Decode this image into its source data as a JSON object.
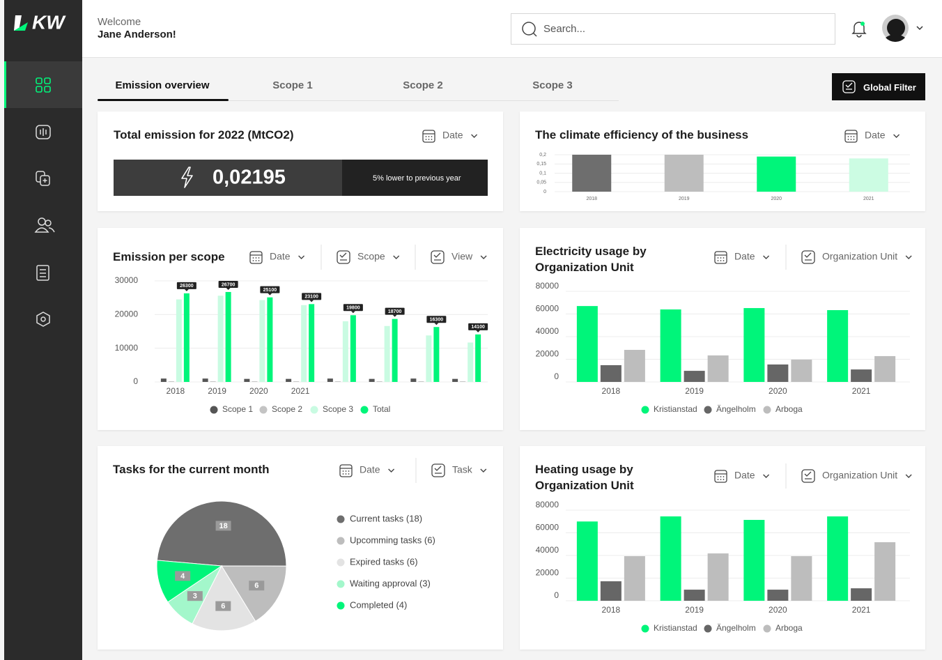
{
  "header": {
    "logo": "KW",
    "greeting": "Welcome",
    "user": "Jane Anderson!",
    "search_placeholder": "Search..."
  },
  "tabs": [
    "Emission overview",
    "Scope 1",
    "Scope 2",
    "Scope 3"
  ],
  "global_filter": "Global Filter",
  "summary": {
    "title": "Total emission for 2022 (MtCO2)",
    "filters": [
      "Date"
    ],
    "value": "0,02195",
    "note": "5% lower to previous year"
  },
  "chart_data": [
    {
      "type": "bar",
      "title": "The climate efficiency of the business",
      "filters": [
        "Date"
      ],
      "categories": [
        "2018",
        "2019",
        "2020",
        "2021"
      ],
      "values": [
        0.2,
        0.2,
        0.19,
        0.18
      ],
      "colors": [
        "#6e6e6e",
        "#bdbdbd",
        "#00f57a",
        "#ccfce3"
      ],
      "ylim": [
        0,
        0.2
      ],
      "yticks": [
        0,
        {
          "value": 0.05,
          "label": "0,05"
        },
        {
          "value": 0.1,
          "label": "0,1"
        },
        {
          "value": 0.15,
          "label": "0,15"
        },
        {
          "value": 0.2,
          "label": "0,2"
        }
      ],
      "grid": true
    },
    {
      "type": "bar",
      "title": "Emission per scope",
      "filters": [
        "Date",
        "Scope",
        "View"
      ],
      "categories": [
        "2018",
        "2019",
        "2020",
        "2021",
        null,
        null,
        null,
        null
      ],
      "series": [
        {
          "name": "Scope 1",
          "color": "#555555",
          "values": [
            1000,
            1000,
            900,
            900,
            1000,
            900,
            1000,
            900
          ]
        },
        {
          "name": "Scope 2",
          "color": "#c4c4c4",
          "values": [
            200,
            200,
            200,
            200,
            200,
            200,
            200,
            200
          ]
        },
        {
          "name": "Scope 3",
          "color": "#c9fbe2",
          "values": [
            24500,
            25600,
            24300,
            22800,
            18000,
            16600,
            13800,
            11700
          ]
        },
        {
          "name": "Total",
          "color": "#00f57a",
          "values": [
            26300,
            26700,
            25100,
            23100,
            19800,
            18700,
            16300,
            14100
          ],
          "data_labels": true
        }
      ],
      "ylim": [
        0,
        30000
      ],
      "yticks": [
        0,
        10000,
        20000,
        30000
      ],
      "grid": true
    },
    {
      "type": "bar",
      "title": "Electricity usage by Organization Unit",
      "filters": [
        "Date",
        "Organization Unit"
      ],
      "categories": [
        "2018",
        "2019",
        "2020",
        "2021"
      ],
      "series": [
        {
          "name": "Kristianstad",
          "color": "#00f57a",
          "values": [
            67000,
            64000,
            65200,
            63400
          ]
        },
        {
          "name": "Ängelholm",
          "color": "#666666",
          "values": [
            14800,
            9800,
            15400,
            11000
          ]
        },
        {
          "name": "Arboga",
          "color": "#bdbdbd",
          "values": [
            28300,
            23400,
            19700,
            22800
          ]
        }
      ],
      "ylim": [
        0,
        80000
      ],
      "yticks": [
        0,
        20000,
        40000,
        60000,
        80000
      ],
      "grid": true
    },
    {
      "type": "pie",
      "title": "Tasks for the current month",
      "filters": [
        "Date",
        "Task"
      ],
      "categories": [
        "Current tasks (18)",
        "Upcomming tasks (6)",
        "Expired tasks (6)",
        "Waiting approval (3)",
        "Completed (4)"
      ],
      "values": [
        18,
        6,
        6,
        3,
        4
      ],
      "colors": [
        "#6e6e6e",
        "#bdbdbd",
        "#e3e3e3",
        "#a3f7cb",
        "#00f57a"
      ]
    },
    {
      "type": "bar",
      "title": "Heating usage by Organization Unit",
      "filters": [
        "Date",
        "Organization Unit"
      ],
      "categories": [
        "2018",
        "2019",
        "2020",
        "2021"
      ],
      "series": [
        {
          "name": "Kristianstad",
          "color": "#00f57a",
          "values": [
            70000,
            74500,
            71400,
            74500
          ]
        },
        {
          "name": "Ängelholm",
          "color": "#666666",
          "values": [
            17200,
            9800,
            9800,
            11000
          ]
        },
        {
          "name": "Arboga",
          "color": "#bdbdbd",
          "values": [
            39400,
            41800,
            39400,
            51700
          ]
        }
      ],
      "ylim": [
        0,
        80000
      ],
      "yticks": [
        0,
        20000,
        40000,
        60000,
        80000
      ],
      "grid": true
    }
  ]
}
